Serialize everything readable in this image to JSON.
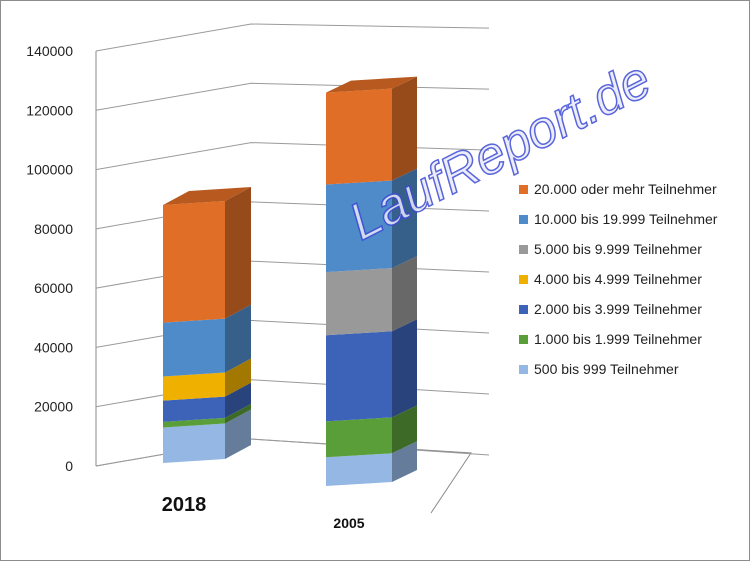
{
  "chart_data": {
    "type": "bar",
    "stacked": true,
    "three_d": true,
    "categories": [
      "2018",
      "2005"
    ],
    "ylim": [
      0,
      140000
    ],
    "yticks": [
      "0",
      "20000",
      "40000",
      "60000",
      "80000",
      "100000",
      "120000",
      "140000"
    ],
    "grid": true,
    "legend_position": "right",
    "series": [
      {
        "name": "500 bis 999 Teilnehmer",
        "color": "#95b7e3",
        "values": [
          12500,
          10000
        ]
      },
      {
        "name": "1.000 bis 1.999 Teilnehmer",
        "color": "#5a9e3a",
        "values": [
          2000,
          12500
        ]
      },
      {
        "name": "2.000 bis 3.999 Teilnehmer",
        "color": "#3d63b8",
        "values": [
          7500,
          30000
        ]
      },
      {
        "name": "4.000 bis 4.999 Teilnehmer",
        "color": "#f0b000",
        "values": [
          8500,
          0
        ]
      },
      {
        "name": "5.000 bis 9.999 Teilnehmer",
        "color": "#999999",
        "values": [
          0,
          22000
        ]
      },
      {
        "name": "10.000 bis 19.999 Teilnehmer",
        "color": "#4f8bc9",
        "values": [
          19000,
          30500
        ]
      },
      {
        "name": "20.000 oder mehr Teilnehmer",
        "color": "#e06e26",
        "values": [
          41500,
          32000
        ]
      }
    ],
    "legend_order": [
      6,
      5,
      4,
      3,
      2,
      1,
      0
    ]
  },
  "watermark": "LaufReport.de"
}
